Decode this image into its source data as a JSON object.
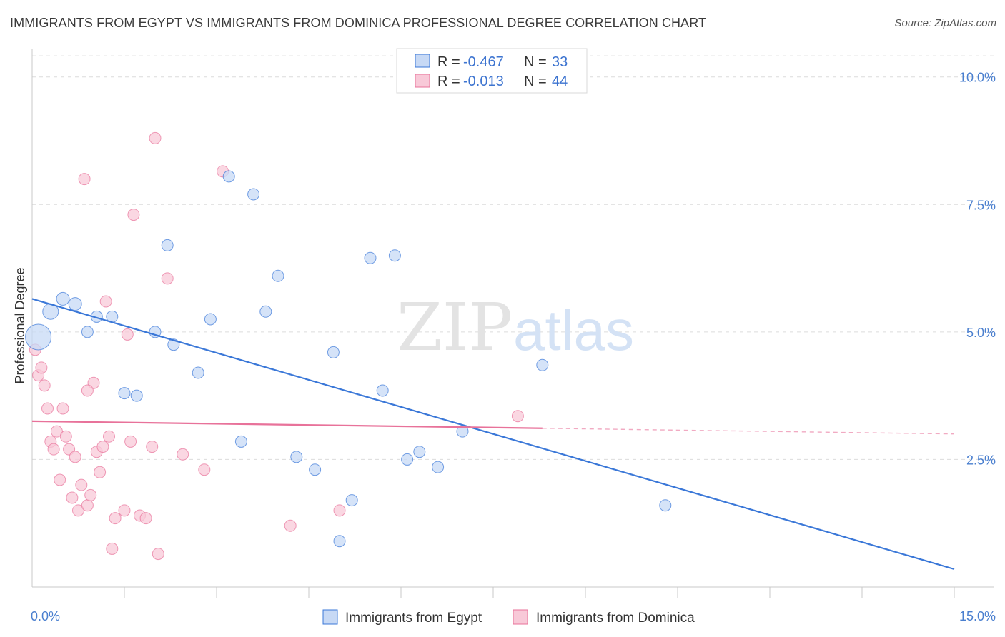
{
  "title": "IMMIGRANTS FROM EGYPT VS IMMIGRANTS FROM DOMINICA PROFESSIONAL DEGREE CORRELATION CHART",
  "source": "Source: ZipAtlas.com",
  "watermark": {
    "zip": "ZIP",
    "atlas": "atlas"
  },
  "colors": {
    "egypt": "#3b78d8",
    "dominica": "#e8729a",
    "egypt_fill": "#c7d9f5",
    "dominica_fill": "#f8c9d8"
  },
  "legend": {
    "rows": [
      {
        "r_label": "R = ",
        "r_value": "-0.467",
        "n_label": "N = ",
        "n_value": "33"
      },
      {
        "r_label": "R = ",
        "r_value": "-0.013",
        "n_label": "N = ",
        "n_value": "44"
      }
    ]
  },
  "chart_data": {
    "type": "scatter",
    "ylabel": "Professional Degree",
    "xlim": [
      0,
      15
    ],
    "ylim": [
      0,
      10.5
    ],
    "x_ticks": [
      {
        "v": 0,
        "label": "0.0%"
      },
      {
        "v": 15,
        "label": "15.0%"
      }
    ],
    "y_ticks": [
      {
        "v": 2.5,
        "label": "2.5%"
      },
      {
        "v": 5,
        "label": "5.0%"
      },
      {
        "v": 7.5,
        "label": "7.5%"
      },
      {
        "v": 10,
        "label": "10.0%"
      }
    ],
    "series": [
      {
        "name": "Immigrants from Egypt",
        "trend": [
          [
            0,
            5.65
          ],
          [
            15,
            0.35
          ]
        ],
        "trend_solid_until": 15,
        "points": [
          [
            0.1,
            4.9,
            18
          ],
          [
            0.3,
            5.4,
            11
          ],
          [
            0.5,
            5.65,
            9
          ],
          [
            0.7,
            5.55,
            9
          ],
          [
            0.9,
            5.0,
            8
          ],
          [
            1.05,
            5.3,
            8
          ],
          [
            1.3,
            5.3,
            8
          ],
          [
            1.5,
            3.8,
            8
          ],
          [
            1.7,
            3.75,
            8
          ],
          [
            2.0,
            5.0,
            8
          ],
          [
            2.2,
            6.7,
            8
          ],
          [
            2.3,
            4.75,
            8
          ],
          [
            2.7,
            4.2,
            8
          ],
          [
            2.9,
            5.25,
            8
          ],
          [
            3.2,
            8.05,
            8
          ],
          [
            3.4,
            2.85,
            8
          ],
          [
            3.6,
            7.7,
            8
          ],
          [
            3.8,
            5.4,
            8
          ],
          [
            4.0,
            6.1,
            8
          ],
          [
            4.3,
            2.55,
            8
          ],
          [
            4.6,
            2.3,
            8
          ],
          [
            4.9,
            4.6,
            8
          ],
          [
            5.0,
            0.9,
            8
          ],
          [
            5.2,
            1.7,
            8
          ],
          [
            5.5,
            6.45,
            8
          ],
          [
            5.7,
            3.85,
            8
          ],
          [
            5.9,
            6.5,
            8
          ],
          [
            6.1,
            2.5,
            8
          ],
          [
            6.3,
            2.65,
            8
          ],
          [
            6.6,
            2.35,
            8
          ],
          [
            7.0,
            3.05,
            8
          ],
          [
            8.3,
            4.35,
            8
          ],
          [
            10.3,
            1.6,
            8
          ]
        ]
      },
      {
        "name": "Immigrants from Dominica",
        "trend": [
          [
            0,
            3.25
          ],
          [
            15,
            3.0
          ]
        ],
        "trend_solid_until": 8.3,
        "points": [
          [
            0.05,
            4.65,
            8
          ],
          [
            0.1,
            4.15,
            8
          ],
          [
            0.15,
            4.3,
            8
          ],
          [
            0.2,
            3.95,
            8
          ],
          [
            0.25,
            3.5,
            8
          ],
          [
            0.3,
            2.85,
            8
          ],
          [
            0.35,
            2.7,
            8
          ],
          [
            0.4,
            3.05,
            8
          ],
          [
            0.45,
            2.1,
            8
          ],
          [
            0.5,
            3.5,
            8
          ],
          [
            0.55,
            2.95,
            8
          ],
          [
            0.6,
            2.7,
            8
          ],
          [
            0.65,
            1.75,
            8
          ],
          [
            0.7,
            2.55,
            8
          ],
          [
            0.75,
            1.5,
            8
          ],
          [
            0.8,
            2.0,
            8
          ],
          [
            0.85,
            8.0,
            8
          ],
          [
            0.9,
            1.6,
            8
          ],
          [
            0.95,
            1.8,
            8
          ],
          [
            1.0,
            4.0,
            8
          ],
          [
            1.05,
            2.65,
            8
          ],
          [
            1.1,
            2.25,
            8
          ],
          [
            1.15,
            2.75,
            8
          ],
          [
            1.2,
            5.6,
            8
          ],
          [
            1.25,
            2.95,
            8
          ],
          [
            1.3,
            0.75,
            8
          ],
          [
            1.35,
            1.35,
            8
          ],
          [
            1.5,
            1.5,
            8
          ],
          [
            1.55,
            4.95,
            8
          ],
          [
            1.6,
            2.85,
            8
          ],
          [
            1.65,
            7.3,
            8
          ],
          [
            1.75,
            1.4,
            8
          ],
          [
            1.85,
            1.35,
            8
          ],
          [
            1.95,
            2.75,
            8
          ],
          [
            2.0,
            8.8,
            8
          ],
          [
            2.05,
            0.65,
            8
          ],
          [
            2.2,
            6.05,
            8
          ],
          [
            2.45,
            2.6,
            8
          ],
          [
            2.8,
            2.3,
            8
          ],
          [
            3.1,
            8.15,
            8
          ],
          [
            4.2,
            1.2,
            8
          ],
          [
            5.0,
            1.5,
            8
          ],
          [
            0.9,
            3.85,
            8
          ],
          [
            7.9,
            3.35,
            8
          ]
        ]
      }
    ]
  }
}
